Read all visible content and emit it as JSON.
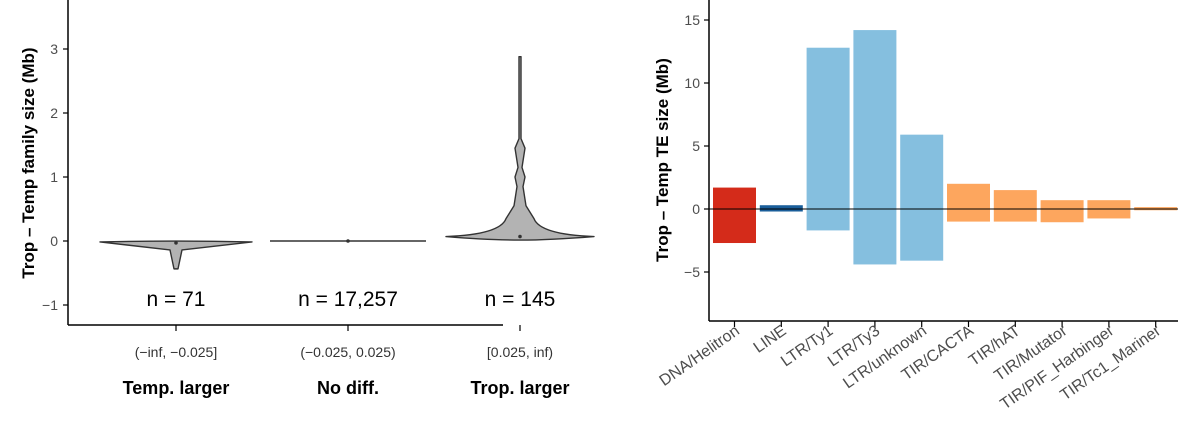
{
  "chart_data": [
    {
      "type": "violin",
      "ylabel": "Trop – Temp family size (Mb)",
      "ylim": [
        -1.3,
        3.6
      ],
      "yticks": [
        -1,
        0,
        1,
        2,
        3
      ],
      "ytick_labels": [
        "−1",
        "0",
        "1",
        "2",
        "3"
      ],
      "groups": [
        {
          "count_label": "n = 71",
          "range_label": "(−inf, −0.025]",
          "group_label": "Temp. larger",
          "median": -0.03,
          "min": -0.42,
          "max": -0.02
        },
        {
          "count_label": "n = 17,257",
          "range_label": "(−0.025, 0.025)",
          "group_label": "No diff.",
          "median": 0.0,
          "min": -0.01,
          "max": 0.01
        },
        {
          "count_label": "n = 145",
          "range_label": "[0.025, inf)",
          "group_label": "Trop. larger",
          "median": 0.07,
          "min": 0.03,
          "max": 2.88
        }
      ]
    },
    {
      "type": "bar",
      "ylabel": "Trop – Temp TE size (Mb)",
      "ylim": [
        -9.5,
        16.0
      ],
      "yticks": [
        -5,
        0,
        5,
        10,
        15
      ],
      "ytick_labels": [
        "−5",
        "0",
        "5",
        "10",
        "15"
      ],
      "categories": [
        "DNA/Helitron",
        "LINE",
        "LTR/Ty1",
        "LTR/Ty3",
        "LTR/unknown",
        "TIR/CACTA",
        "TIR/hAT",
        "TIR/Mutator",
        "TIR/PIF_Harbinger",
        "TIR/Tc1_Mariner"
      ],
      "series": [
        {
          "name": "Trop. larger",
          "values": [
            1.7,
            0.3,
            12.8,
            14.2,
            5.9,
            2.0,
            1.5,
            0.7,
            0.7,
            0.15
          ]
        },
        {
          "name": "Temp. larger",
          "values": [
            -2.7,
            -0.2,
            -1.7,
            -4.4,
            -4.1,
            -1.0,
            -1.0,
            -1.05,
            -0.75,
            -0.1
          ]
        }
      ],
      "colors": [
        "#d42b1a",
        "#1a5e9a",
        "#85bfdf",
        "#85bfdf",
        "#85bfdf",
        "#fda65e",
        "#fda65e",
        "#fda65e",
        "#fda65e",
        "#fda65e"
      ]
    }
  ]
}
